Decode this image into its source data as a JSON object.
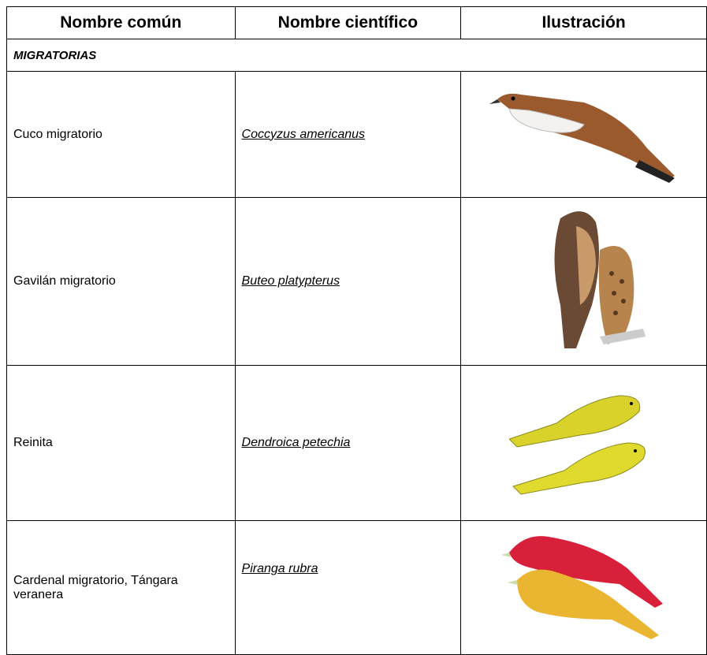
{
  "table": {
    "header": [
      "Nombre común",
      "Nombre científico",
      "Ilustración"
    ],
    "section": "MIGRATORIAS",
    "rows": [
      [
        "Cuco migratorio",
        "Coccyzus americanus"
      ],
      [
        "Gavilán migratorio",
        "Buteo platypterus"
      ],
      [
        "Reinita",
        "Dendroica petechia"
      ],
      [
        "Cardenal migratorio, Tángara veranera",
        "Piranga rubra"
      ]
    ]
  }
}
